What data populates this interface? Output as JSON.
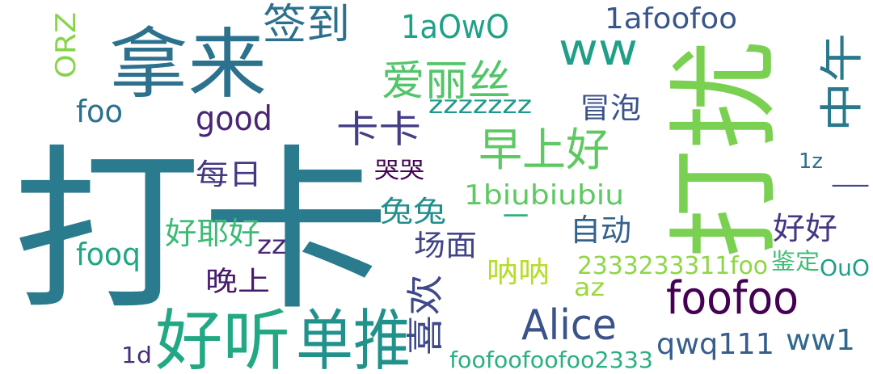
{
  "words": [
    {
      "text": "打卡",
      "color": "#2a7b8e"
    },
    {
      "text": "打扰",
      "color": "#7ad151"
    },
    {
      "text": "拿来",
      "color": "#2c728e"
    },
    {
      "text": "好听",
      "color": "#22a884"
    },
    {
      "text": "单推",
      "color": "#21918c"
    },
    {
      "text": "签到",
      "color": "#2d708e"
    },
    {
      "text": "爱丽丝",
      "color": "#52c569"
    },
    {
      "text": "早上好",
      "color": "#5ec962"
    },
    {
      "text": "ww",
      "color": "#1f9f88"
    },
    {
      "text": "卡卡",
      "color": "#433e85"
    },
    {
      "text": "1aOwO",
      "color": "#1fa187"
    },
    {
      "text": "1afoofoo",
      "color": "#39568c"
    },
    {
      "text": "中午",
      "color": "#2a788e"
    },
    {
      "text": "ORZ",
      "color": "#86d549"
    },
    {
      "text": "foo",
      "color": "#2c718e"
    },
    {
      "text": "good",
      "color": "#482576"
    },
    {
      "text": "zzzzzzz",
      "color": "#1f9a8a"
    },
    {
      "text": "冒泡",
      "color": "#3b528b"
    },
    {
      "text": "每日",
      "color": "#453882"
    },
    {
      "text": "哭哭",
      "color": "#440154"
    },
    {
      "text": "1biubiubiu",
      "color": "#5ec962"
    },
    {
      "text": "兔兔",
      "color": "#218f8d"
    },
    {
      "text": "一",
      "color": "#2db27d"
    },
    {
      "text": "1z",
      "color": "#2e6e8e"
    },
    {
      "text": "__",
      "color": "#3e4a89"
    },
    {
      "text": "好耶好",
      "color": "#3bbb75"
    },
    {
      "text": "自动",
      "color": "#33638d"
    },
    {
      "text": "好好",
      "color": "#453781"
    },
    {
      "text": "fooq",
      "color": "#21a685"
    },
    {
      "text": "zz",
      "color": "#482878"
    },
    {
      "text": "场面",
      "color": "#414487"
    },
    {
      "text": "呐呐",
      "color": "#b5de2b"
    },
    {
      "text": "2333233311foo",
      "color": "#8ed645"
    },
    {
      "text": "鉴定",
      "color": "#3dbc74"
    },
    {
      "text": "OuO",
      "color": "#1f9e89"
    },
    {
      "text": "晚上",
      "color": "#481a6c"
    },
    {
      "text": "喜欢",
      "color": "#3e4989"
    },
    {
      "text": "az",
      "color": "#9bd93c"
    },
    {
      "text": "foofoo",
      "color": "#440154"
    },
    {
      "text": "Alice",
      "color": "#3b528b"
    },
    {
      "text": "qwq111",
      "color": "#365d8d"
    },
    {
      "text": "ww1",
      "color": "#31688e"
    },
    {
      "text": "1d",
      "color": "#472d7b"
    },
    {
      "text": "foofoofoofoo2333",
      "color": "#2ab07f"
    }
  ]
}
